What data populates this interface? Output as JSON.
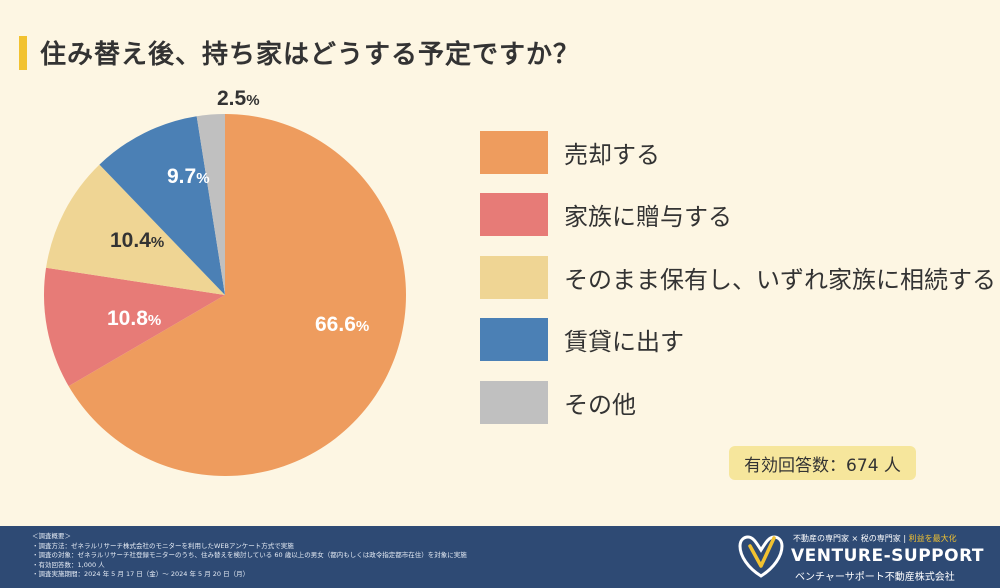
{
  "title": "住み替え後、持ち家はどうする予定ですか？",
  "colors": {
    "accent": "#f2c230",
    "background": "#fdf6e3",
    "footer": "#2e4a74"
  },
  "chart_data": {
    "type": "pie",
    "title": "住み替え後、持ち家はどうする予定ですか？",
    "unit": "%",
    "slices": [
      {
        "label": "売却する",
        "value": 66.6,
        "color": "#ee9c5e"
      },
      {
        "label": "家族に贈与する",
        "value": 10.8,
        "color": "#e77b77"
      },
      {
        "label": "そのまま保有し、いずれ家族に相続する",
        "value": 10.4,
        "color": "#efd594"
      },
      {
        "label": "賃貸に出す",
        "value": 9.7,
        "color": "#4b80b5"
      },
      {
        "label": "その他",
        "value": 2.5,
        "color": "#c0c0c0"
      }
    ],
    "start": "12 o'clock",
    "direction": "clockwise",
    "legend_position": "right"
  },
  "respondents_label": "有効回答数：674 人",
  "footer": {
    "notes": [
      "＜調査概要＞",
      "・調査方法：ゼネラルリサーチ株式会社のモニターを利用したWEBアンケート方式で実施",
      "・調査の対象：ゼネラルリサーチ社登録モニターのうち、住み替えを検討している 60 歳以上の男女（都内もしくは政令指定都市在住）を対象に実施",
      "・有効回答数：1,000 人",
      "・調査実施期間：2024 年 5 月 17 日（金）～ 2024 年 5 月 20 日（月）"
    ],
    "tagline_1": "不動産の専門家",
    "tagline_sep1": "×",
    "tagline_2": "税の専門家",
    "tagline_sep2": "|",
    "tagline_3": "利益を最大化",
    "brand_name": "VENTURE-SUPPORT",
    "brand_sub": "ベンチャーサポート不動産株式会社"
  }
}
